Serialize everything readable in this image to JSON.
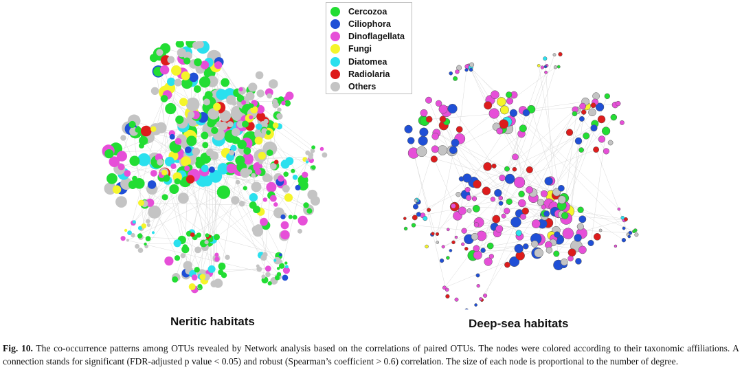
{
  "figure": {
    "legend": [
      {
        "label": "Cercozoa",
        "color": "#22dd33"
      },
      {
        "label": "Ciliophora",
        "color": "#1f4fd6"
      },
      {
        "label": "Dinoflagellata",
        "color": "#e64fd8"
      },
      {
        "label": "Fungi",
        "color": "#f5f52a"
      },
      {
        "label": "Diatomea",
        "color": "#2ae0ee"
      },
      {
        "label": "Radiolaria",
        "color": "#dd1c1c"
      },
      {
        "label": "Others",
        "color": "#c4c4c4"
      }
    ],
    "panels": {
      "neritic": {
        "label": "Neritic habitats"
      },
      "deep": {
        "label": "Deep-sea habitats"
      }
    }
  },
  "caption": {
    "number": "Fig. 10.",
    "text": "The co-occurrence patterns among OTUs revealed by Network analysis based on the correlations of paired OTUs. The nodes were colored according to their taxonomic affiliations. A connection stands for significant (FDR-adjusted p value < 0.05) and robust (Spearman’s coefficient > 0.6) correlation. The size of each node is proportional to the number of degree."
  }
}
